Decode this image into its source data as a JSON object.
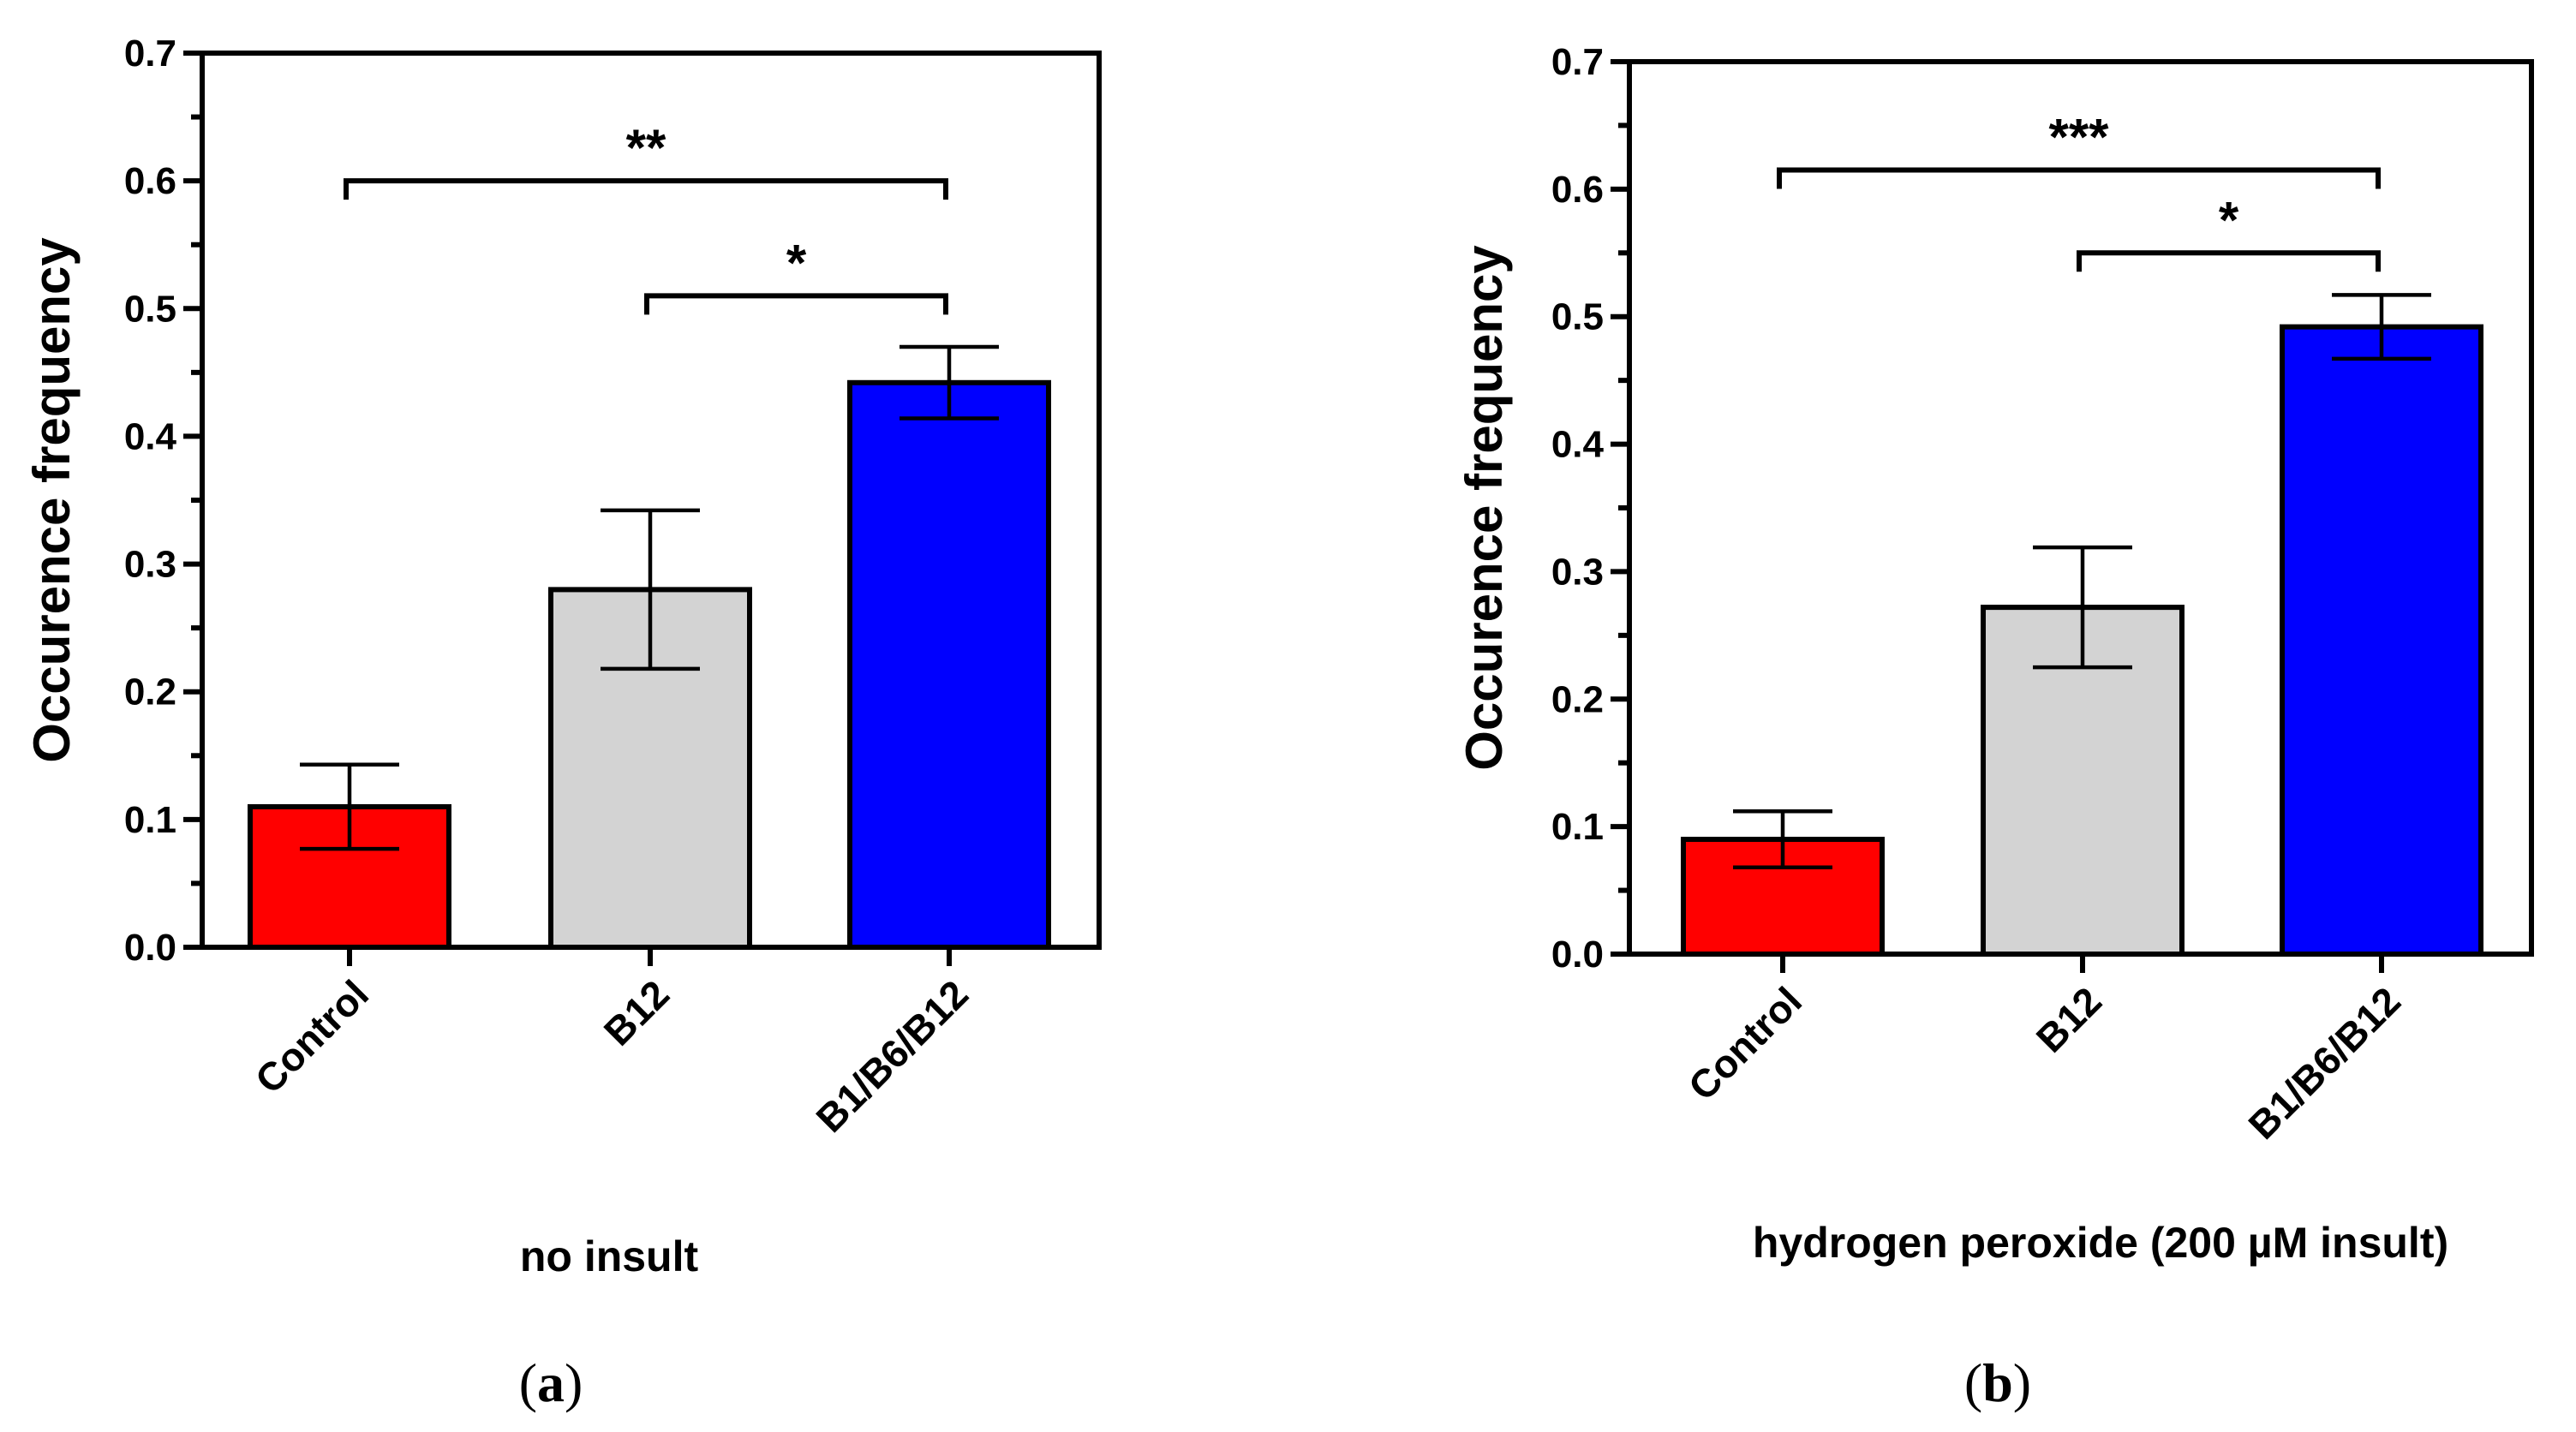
{
  "chart_data": [
    {
      "type": "bar",
      "panel_label": "a",
      "title": "",
      "xlabel": "no insult",
      "ylabel": "Occurence frequency",
      "ylim": [
        0,
        0.7
      ],
      "yticks": [
        "0.0",
        "0.1",
        "0.2",
        "0.3",
        "0.4",
        "0.5",
        "0.6",
        "0.7"
      ],
      "categories": [
        "Control",
        "B12",
        "B1/B6/B12"
      ],
      "values": [
        0.11,
        0.28,
        0.442
      ],
      "errors": [
        0.033,
        0.062,
        0.028
      ],
      "colors": [
        "#ff0000",
        "#d3d3d3",
        "#0000ff"
      ],
      "significance": [
        {
          "from": 0,
          "to": 2,
          "label": "**",
          "y": 0.6
        },
        {
          "from": 1,
          "to": 2,
          "label": "*",
          "y": 0.51
        }
      ]
    },
    {
      "type": "bar",
      "panel_label": "b",
      "title": "",
      "xlabel": "hydrogen peroxide (200 µM insult)",
      "ylabel": "Occurence frequency",
      "ylim": [
        0,
        0.7
      ],
      "yticks": [
        "0.0",
        "0.1",
        "0.2",
        "0.3",
        "0.4",
        "0.5",
        "0.6",
        "0.7"
      ],
      "categories": [
        "Control",
        "B12",
        "B1/B6/B12"
      ],
      "values": [
        0.09,
        0.272,
        0.492
      ],
      "errors": [
        0.022,
        0.047,
        0.025
      ],
      "colors": [
        "#ff0000",
        "#d3d3d3",
        "#0000ff"
      ],
      "significance": [
        {
          "from": 0,
          "to": 2,
          "label": "***",
          "y": 0.615
        },
        {
          "from": 1,
          "to": 2,
          "label": "*",
          "y": 0.55
        }
      ]
    }
  ]
}
